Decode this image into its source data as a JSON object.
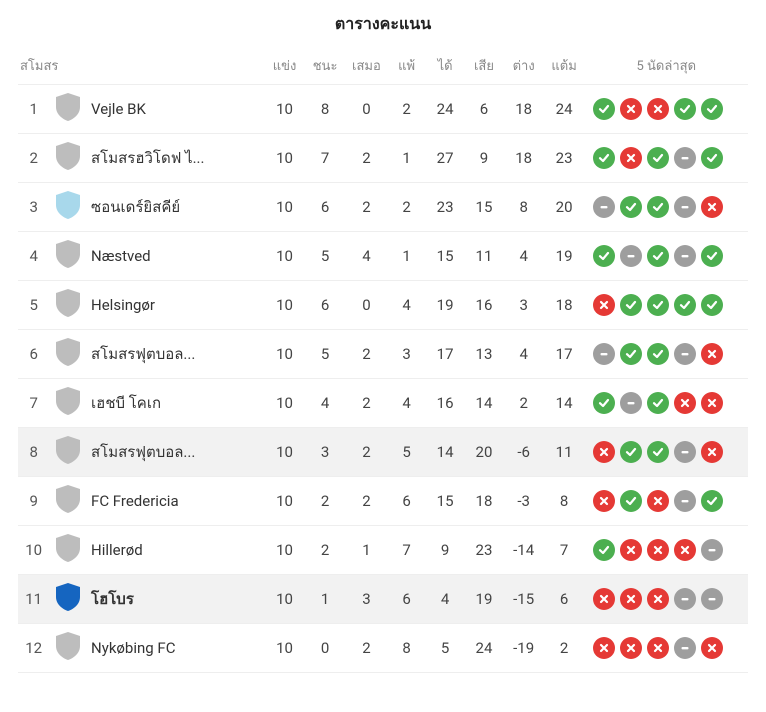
{
  "title": "ตารางคะแนน",
  "headers": {
    "club": "สโมสร",
    "played": "แข่ง",
    "win": "ชนะ",
    "draw": "เสมอ",
    "lose": "แพ้",
    "gf": "ได้",
    "ga": "เสีย",
    "gd": "ต่าง",
    "pts": "แต้ม",
    "form": "5 นัดล่าสุด"
  },
  "colors": {
    "win": "#4caf50",
    "lose": "#e53935",
    "draw": "#9e9e9e",
    "crest_default": "#bdbdbd",
    "crest_lightblue": "#a8d8eb",
    "crest_blue": "#1565c0",
    "row_highlight": "#f2f2f2",
    "border": "#eeeeee",
    "header_text": "#888888",
    "body_text": "#444444"
  },
  "rows": [
    {
      "pos": 1,
      "club": "Vejle BK",
      "crest": "default",
      "pl": 10,
      "w": 8,
      "d": 0,
      "l": 2,
      "gf": 24,
      "ga": 6,
      "gd": 18,
      "pts": 24,
      "form": [
        "W",
        "L",
        "L",
        "W",
        "W"
      ],
      "hl": false,
      "bold": false
    },
    {
      "pos": 2,
      "club": "สโมสรฮวิโดฟ ไ...",
      "crest": "default",
      "pl": 10,
      "w": 7,
      "d": 2,
      "l": 1,
      "gf": 27,
      "ga": 9,
      "gd": 18,
      "pts": 23,
      "form": [
        "W",
        "L",
        "W",
        "D",
        "W"
      ],
      "hl": false,
      "bold": false
    },
    {
      "pos": 3,
      "club": "ซอนเดร์ยิสคีย์",
      "crest": "lightblue",
      "pl": 10,
      "w": 6,
      "d": 2,
      "l": 2,
      "gf": 23,
      "ga": 15,
      "gd": 8,
      "pts": 20,
      "form": [
        "D",
        "W",
        "W",
        "D",
        "L"
      ],
      "hl": false,
      "bold": false
    },
    {
      "pos": 4,
      "club": "Næstved",
      "crest": "default",
      "pl": 10,
      "w": 5,
      "d": 4,
      "l": 1,
      "gf": 15,
      "ga": 11,
      "gd": 4,
      "pts": 19,
      "form": [
        "W",
        "D",
        "W",
        "D",
        "W"
      ],
      "hl": false,
      "bold": false
    },
    {
      "pos": 5,
      "club": "Helsingør",
      "crest": "default",
      "pl": 10,
      "w": 6,
      "d": 0,
      "l": 4,
      "gf": 19,
      "ga": 16,
      "gd": 3,
      "pts": 18,
      "form": [
        "L",
        "W",
        "W",
        "W",
        "W"
      ],
      "hl": false,
      "bold": false
    },
    {
      "pos": 6,
      "club": "สโมสรฟุตบอล...",
      "crest": "default",
      "pl": 10,
      "w": 5,
      "d": 2,
      "l": 3,
      "gf": 17,
      "ga": 13,
      "gd": 4,
      "pts": 17,
      "form": [
        "D",
        "W",
        "W",
        "D",
        "L"
      ],
      "hl": false,
      "bold": false
    },
    {
      "pos": 7,
      "club": "เฮชบี โคเก",
      "crest": "default",
      "pl": 10,
      "w": 4,
      "d": 2,
      "l": 4,
      "gf": 16,
      "ga": 14,
      "gd": 2,
      "pts": 14,
      "form": [
        "W",
        "D",
        "W",
        "L",
        "L"
      ],
      "hl": false,
      "bold": false
    },
    {
      "pos": 8,
      "club": "สโมสรฟุตบอล...",
      "crest": "default",
      "pl": 10,
      "w": 3,
      "d": 2,
      "l": 5,
      "gf": 14,
      "ga": 20,
      "gd": -6,
      "pts": 11,
      "form": [
        "L",
        "W",
        "W",
        "D",
        "L"
      ],
      "hl": true,
      "bold": false
    },
    {
      "pos": 9,
      "club": "FC Fredericia",
      "crest": "default",
      "pl": 10,
      "w": 2,
      "d": 2,
      "l": 6,
      "gf": 15,
      "ga": 18,
      "gd": -3,
      "pts": 8,
      "form": [
        "L",
        "W",
        "L",
        "D",
        "W"
      ],
      "hl": false,
      "bold": false
    },
    {
      "pos": 10,
      "club": "Hillerød",
      "crest": "default",
      "pl": 10,
      "w": 2,
      "d": 1,
      "l": 7,
      "gf": 9,
      "ga": 23,
      "gd": -14,
      "pts": 7,
      "form": [
        "W",
        "L",
        "L",
        "L",
        "D"
      ],
      "hl": false,
      "bold": false
    },
    {
      "pos": 11,
      "club": "โฮโบร",
      "crest": "blue",
      "pl": 10,
      "w": 1,
      "d": 3,
      "l": 6,
      "gf": 4,
      "ga": 19,
      "gd": -15,
      "pts": 6,
      "form": [
        "L",
        "L",
        "L",
        "D",
        "D"
      ],
      "hl": true,
      "bold": true
    },
    {
      "pos": 12,
      "club": "Nykøbing FC",
      "crest": "default",
      "pl": 10,
      "w": 0,
      "d": 2,
      "l": 8,
      "gf": 5,
      "ga": 24,
      "gd": -19,
      "pts": 2,
      "form": [
        "L",
        "L",
        "L",
        "D",
        "L"
      ],
      "hl": false,
      "bold": false
    }
  ]
}
